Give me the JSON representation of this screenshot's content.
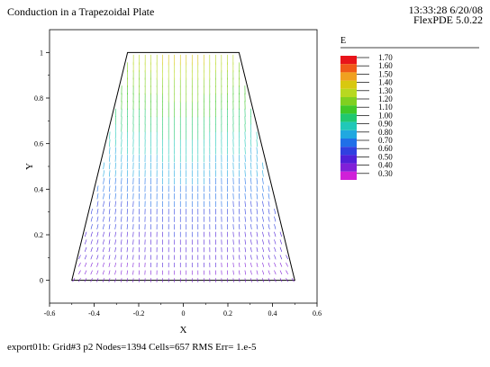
{
  "header": {
    "title": "Conduction in a Trapezoidal Plate",
    "time": "13:33:28 6/20/08",
    "version": "FlexPDE 5.0.22"
  },
  "footer": {
    "info": "export01b:  Grid#3  p2  Nodes=1394 Cells=657 RMS Err= 1.e-5"
  },
  "chart_data": {
    "type": "vector-field",
    "title": "Conduction in a Trapezoidal Plate",
    "xlabel": "X",
    "ylabel": "Y",
    "xlim": [
      -0.6,
      0.6
    ],
    "ylim": [
      -0.1,
      1.1
    ],
    "xticks": [
      "-0.6",
      "-0.4",
      "-0.2",
      "0",
      "0.2",
      "0.4",
      "0.6"
    ],
    "yticks": [
      "0",
      "0.2",
      "0.4",
      "0.6",
      "0.8",
      "1"
    ],
    "domain_outline": [
      [
        -0.5,
        0
      ],
      [
        0.5,
        0
      ],
      [
        0.25,
        1
      ],
      [
        -0.25,
        1
      ]
    ],
    "legend": {
      "title": "E",
      "levels": [
        "1.70",
        "1.60",
        "1.50",
        "1.40",
        "1.30",
        "1.20",
        "1.10",
        "1.00",
        "0.90",
        "0.80",
        "0.70",
        "0.60",
        "0.50",
        "0.40",
        "0.30"
      ],
      "colors": [
        "#e8141a",
        "#f05a18",
        "#f0a020",
        "#d8c810",
        "#b8d820",
        "#80d020",
        "#40c828",
        "#20c870",
        "#20c8b8",
        "#20a8e0",
        "#2070e8",
        "#3040e0",
        "#5020d8",
        "#8020d8",
        "#d020d8"
      ]
    }
  }
}
